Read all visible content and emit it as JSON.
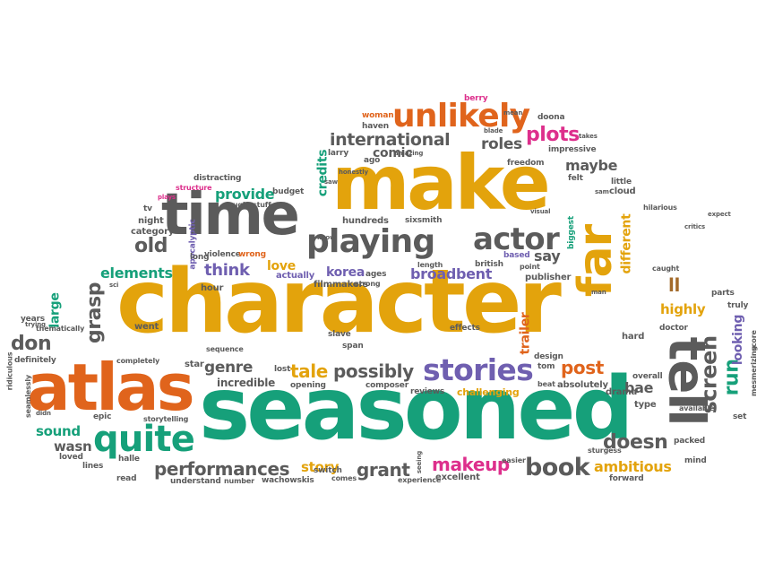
{
  "colors": {
    "orange": "#e0641c",
    "gold": "#e3a30c",
    "gray": "#5b5b5b",
    "green": "#16a07a",
    "purple": "#6f5fb0",
    "pink": "#dd2f8c",
    "brown": "#a36a2a"
  },
  "words": {
    "character": "character",
    "seasoned": "seasoned",
    "make": "make",
    "atlas": "atlas",
    "time": "time",
    "tell": "tell",
    "far": "far",
    "unlikely": "unlikely",
    "playing": "playing",
    "actor": "actor",
    "quite": "quite",
    "stories": "stories",
    "international": "international",
    "plots": "plots",
    "roles": "roles",
    "performances": "performances",
    "book": "book",
    "makeup": "makeup",
    "ambitious": "ambitious",
    "doesn": "doesn",
    "screen": "screen",
    "run": "run",
    "possibly": "possibly",
    "grasp": "grasp",
    "don": "don",
    "genre": "genre",
    "tale": "tale",
    "post": "post",
    "grant": "grant",
    "story": "story",
    "broadbent": "broadbent",
    "korea": "korea",
    "love": "love",
    "elements": "elements",
    "think": "think",
    "provide": "provide",
    "old": "old",
    "comic": "comic",
    "credits": "credits",
    "maybe": "maybe",
    "different": "different",
    "say": "say",
    "highly": "highly",
    "looking": "looking",
    "trailer": "trailer",
    "bae": "bae",
    "ll": "ll",
    "large": "large",
    "sound": "sound",
    "wasn": "wasn",
    "incredible": "incredible",
    "hour": "hour",
    "actually": "actually",
    "filmmakers": "filmmakers",
    "publisher": "publisher",
    "hundreds": "hundreds",
    "sixsmith": "sixsmith",
    "apocalyptic": "apocalyptic",
    "biggest": "biggest",
    "british": "british",
    "based": "based",
    "impressive": "impressive",
    "freedom": "freedom",
    "doona": "doona",
    "woman": "woman",
    "haven": "haven",
    "berry": "berry",
    "ago": "ago",
    "larry": "larry",
    "distracting": "distracting",
    "budget": "budget",
    "night": "night",
    "category": "category",
    "tv": "tv",
    "violence": "violence",
    "wrong": "wrong",
    "long": "long",
    "ages": "ages",
    "strong": "strong",
    "length": "length",
    "point": "point",
    "caught": "caught",
    "felt": "felt",
    "little": "little",
    "cloud": "cloud",
    "went": "went",
    "years": "years",
    "thematically": "thematically",
    "slave": "slave",
    "span": "span",
    "sequence": "sequence",
    "effects": "effects",
    "design": "design",
    "hard": "hard",
    "doctor": "doctor",
    "truly": "truly",
    "parts": "parts",
    "completely": "completely",
    "star": "star",
    "lost": "lost",
    "opening": "opening",
    "composer": "composer",
    "reviews": "reviews",
    "challenging": "challenging",
    "absolutely": "absolutely",
    "tom": "tom",
    "beat": "beat",
    "drama": "drama",
    "overall": "overall",
    "type": "type",
    "available": "available",
    "set": "set",
    "mesmerizing": "mesmerizing",
    "score": "score",
    "definitely": "definitely",
    "ridiculous": "ridiculous",
    "seamlessly": "seamlessly",
    "epic": "epic",
    "storytelling": "storytelling",
    "loved": "loved",
    "halle": "halle",
    "lines": "lines",
    "read": "read",
    "understand": "understand",
    "number": "number",
    "wachowskis": "wachowskis",
    "switch": "switch",
    "comes": "comes",
    "experience": "experience",
    "excellent": "excellent",
    "easier": "easier",
    "seeing": "seeing",
    "sturgess": "sturgess",
    "packed": "packed",
    "mind": "mind",
    "forward": "forward",
    "hilarious": "hilarious",
    "critics": "critics",
    "expect": "expect",
    "visual": "visual",
    "takes": "takes",
    "blade": "blade",
    "stuff": "stuff",
    "laugh": "laugh",
    "structure": "structure",
    "plays": "plays",
    "honestly": "honestly",
    "amazing": "amazing",
    "know": "know",
    "saw": "saw",
    "sci": "sci",
    "didn": "didn",
    "trying": "trying",
    "man": "man",
    "sam": "sam",
    "mean": "mean"
  }
}
